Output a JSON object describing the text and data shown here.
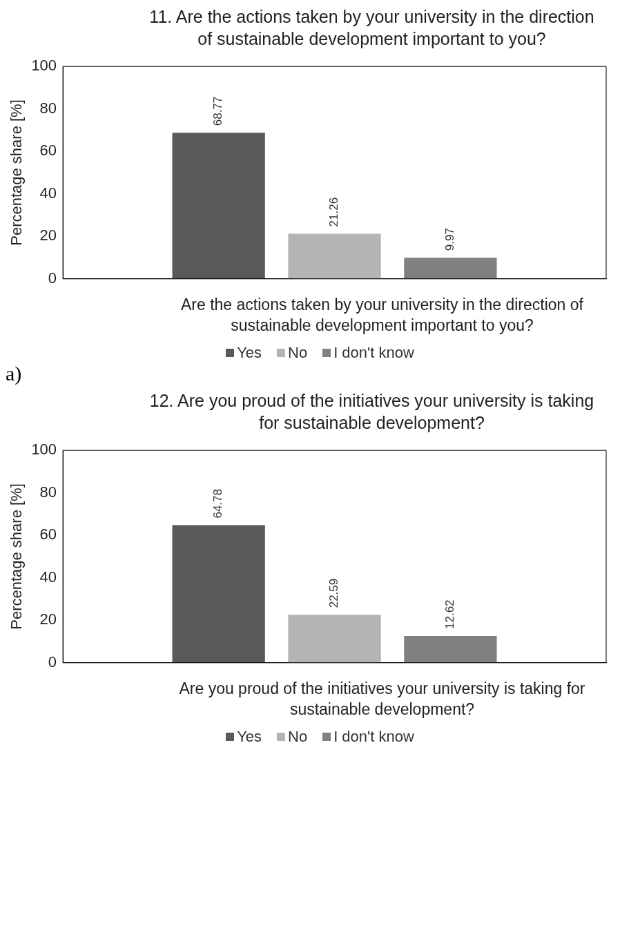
{
  "chart_data": [
    {
      "type": "bar",
      "title": "11. Are the actions taken by your university in the direction of sustainable development important to you?",
      "xlabel": "Are the actions taken by your university in the direction of sustainable development important to you?",
      "ylabel": "Percentage share [%]",
      "categories": [
        null
      ],
      "series": [
        {
          "name": "Yes",
          "color": "#595959",
          "values": [
            68.77
          ]
        },
        {
          "name": "No",
          "color": "#b4b4b4",
          "values": [
            21.26
          ]
        },
        {
          "name": "I don't know",
          "color": "#808080",
          "values": [
            9.97
          ]
        }
      ],
      "ylim": [
        0,
        100
      ],
      "yticks": [
        0,
        20,
        40,
        60,
        80,
        100
      ],
      "grid": false,
      "legend": "bottom",
      "data_labels": true,
      "annotations": [
        "a)"
      ]
    },
    {
      "type": "bar",
      "title": "12. Are you proud of the initiatives your university is taking for sustainable development?",
      "xlabel": "Are you proud of the initiatives your university is taking for sustainable development?",
      "ylabel": "Percentage share [%]",
      "categories": [
        null
      ],
      "series": [
        {
          "name": "Yes",
          "color": "#595959",
          "values": [
            64.78
          ]
        },
        {
          "name": "No",
          "color": "#b4b4b4",
          "values": [
            22.59
          ]
        },
        {
          "name": "I don't know",
          "color": "#808080",
          "values": [
            12.62
          ]
        }
      ],
      "ylim": [
        0,
        100
      ],
      "yticks": [
        0,
        20,
        40,
        60,
        80,
        100
      ],
      "grid": false,
      "legend": "bottom",
      "data_labels": true
    }
  ]
}
